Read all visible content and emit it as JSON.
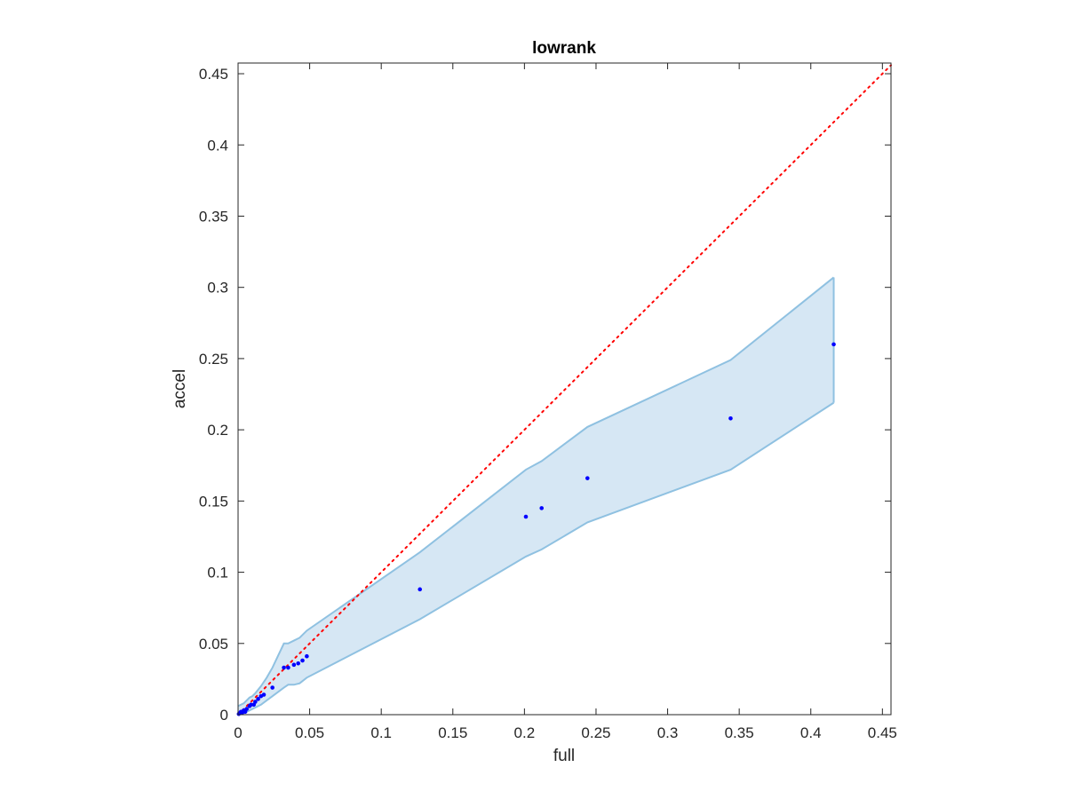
{
  "chart_data": {
    "type": "scatter",
    "title": "lowrank",
    "xlabel": "full",
    "ylabel": "accel",
    "xlim": [
      0,
      0.456
    ],
    "ylim": [
      0,
      0.4575
    ],
    "xticks": [
      0,
      0.05,
      0.1,
      0.15,
      0.2,
      0.25,
      0.3,
      0.35,
      0.4,
      0.45
    ],
    "yticks": [
      0,
      0.05,
      0.1,
      0.15,
      0.2,
      0.25,
      0.3,
      0.35,
      0.4,
      0.45
    ],
    "xtick_labels": [
      "0",
      "0.05",
      "0.1",
      "0.15",
      "0.2",
      "0.25",
      "0.3",
      "0.35",
      "0.4",
      "0.45"
    ],
    "ytick_labels": [
      "0",
      "0.05",
      "0.1",
      "0.15",
      "0.2",
      "0.25",
      "0.3",
      "0.35",
      "0.4",
      "0.45"
    ],
    "grid": false,
    "points": {
      "color": "#0000ff",
      "x": [
        0.0005,
        0.001,
        0.002,
        0.003,
        0.004,
        0.005,
        0.006,
        0.008,
        0.009,
        0.011,
        0.012,
        0.014,
        0.016,
        0.018,
        0.024,
        0.032,
        0.035,
        0.039,
        0.042,
        0.045,
        0.048,
        0.127,
        0.201,
        0.212,
        0.244,
        0.344,
        0.416
      ],
      "y": [
        0.0005,
        0.001,
        0.002,
        0.0015,
        0.003,
        0.002,
        0.004,
        0.006,
        0.007,
        0.007,
        0.009,
        0.011,
        0.013,
        0.014,
        0.019,
        0.033,
        0.033,
        0.035,
        0.036,
        0.038,
        0.041,
        0.088,
        0.139,
        0.145,
        0.166,
        0.208,
        0.26
      ]
    },
    "band": {
      "fill": "#d6e7f4",
      "stroke": "#8fc1e1",
      "x": [
        0,
        0.002,
        0.004,
        0.006,
        0.008,
        0.01,
        0.012,
        0.016,
        0.02,
        0.024,
        0.032,
        0.035,
        0.039,
        0.043,
        0.048,
        0.127,
        0.201,
        0.212,
        0.244,
        0.344,
        0.416
      ],
      "upper": [
        0.006,
        0.007,
        0.008,
        0.01,
        0.012,
        0.013,
        0.015,
        0.02,
        0.026,
        0.033,
        0.05,
        0.05,
        0.052,
        0.054,
        0.059,
        0.114,
        0.172,
        0.178,
        0.202,
        0.249,
        0.307
      ],
      "lower": [
        0,
        0.0005,
        0.0015,
        0.002,
        0.003,
        0.004,
        0.005,
        0.007,
        0.01,
        0.013,
        0.019,
        0.021,
        0.021,
        0.022,
        0.026,
        0.067,
        0.111,
        0.116,
        0.135,
        0.172,
        0.219
      ]
    },
    "reference_line": {
      "style": "dotted",
      "color": "#ff0000",
      "x": [
        0,
        0.456
      ],
      "y": [
        0,
        0.456
      ]
    }
  }
}
